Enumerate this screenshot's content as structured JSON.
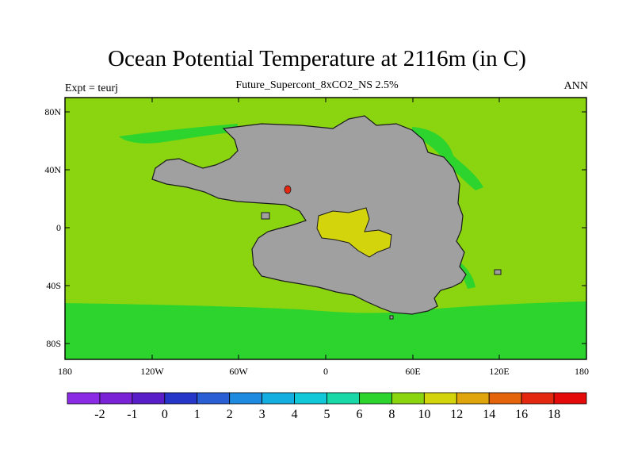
{
  "header": {
    "title": "Ocean Potential Temperature at 2116m (in C)",
    "subtitle": "Future_Supercont_8xCO2_NS 2.5%",
    "left_label": "Expt = teurj",
    "right_label": "ANN"
  },
  "map": {
    "lon_range": [
      -180,
      180
    ],
    "lat_range": [
      -90,
      90
    ],
    "lat_ticks": [
      "80N",
      "40N",
      "0",
      "40S",
      "80S"
    ],
    "lon_ticks": [
      "180",
      "120W",
      "60W",
      "0",
      "60E",
      "120E",
      "180"
    ]
  },
  "colorbar": {
    "labels": [
      "-2",
      "-1",
      "0",
      "1",
      "2",
      "3",
      "4",
      "5",
      "6",
      "8",
      "10",
      "12",
      "14",
      "16",
      "18"
    ],
    "colors": [
      "#8B2BE6",
      "#7A22D6",
      "#5A1EC8",
      "#2636C8",
      "#2A5ED4",
      "#1E8AE0",
      "#14AEE0",
      "#10C8D8",
      "#18D8A8",
      "#2ED42E",
      "#8AD410",
      "#D4D40C",
      "#E0A40C",
      "#E4640C",
      "#E42810",
      "#E40A0A"
    ]
  },
  "colors": {
    "land": "#A0A0A0",
    "ocean_8_10": "#8AD410",
    "ocean_6_8": "#2ED42E",
    "ocean_10_12": "#D4D40C",
    "hot_spot": "#E42810"
  }
}
